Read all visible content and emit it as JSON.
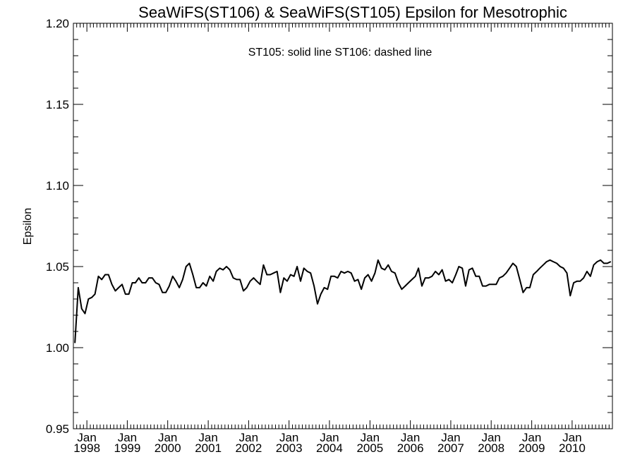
{
  "chart_data": {
    "type": "line",
    "title": "SeaWiFS(ST106) & SeaWiFS(ST105)  Epsilon for Mesotrophic",
    "annotation": "ST105: solid line   ST106: dashed line",
    "xlabel": "",
    "ylabel": "Epsilon",
    "ylim": [
      0.95,
      1.2
    ],
    "xlim": [
      "1997-09-01",
      "2010-12-31"
    ],
    "grid": false,
    "y_ticks": [
      "0.95",
      "1.00",
      "1.05",
      "1.10",
      "1.15",
      "1.20"
    ],
    "x_tick_labels": [
      {
        "month": "Jan",
        "year": "1998",
        "date": "1998-01-01"
      },
      {
        "month": "Jan",
        "year": "1999",
        "date": "1999-01-01"
      },
      {
        "month": "Jan",
        "year": "2000",
        "date": "2000-01-01"
      },
      {
        "month": "Jan",
        "year": "2001",
        "date": "2001-01-01"
      },
      {
        "month": "Jan",
        "year": "2002",
        "date": "2002-01-01"
      },
      {
        "month": "Jan",
        "year": "2003",
        "date": "2003-01-01"
      },
      {
        "month": "Jan",
        "year": "2004",
        "date": "2004-01-01"
      },
      {
        "month": "Jan",
        "year": "2005",
        "date": "2005-01-01"
      },
      {
        "month": "Jan",
        "year": "2006",
        "date": "2006-01-01"
      },
      {
        "month": "Jan",
        "year": "2007",
        "date": "2007-01-01"
      },
      {
        "month": "Jan",
        "year": "2008",
        "date": "2008-01-01"
      },
      {
        "month": "Jan",
        "year": "2009",
        "date": "2009-01-01"
      },
      {
        "month": "Jan",
        "year": "2010",
        "date": "2010-01-01"
      }
    ],
    "series": [
      {
        "name": "ST105",
        "style": "solid",
        "color": "#000000",
        "x": [
          "1997-09",
          "1997-10",
          "1997-11",
          "1997-12",
          "1998-01",
          "1998-02",
          "1998-03",
          "1998-04",
          "1998-05",
          "1998-06",
          "1998-07",
          "1998-08",
          "1998-09",
          "1998-10",
          "1998-11",
          "1998-12",
          "1999-01",
          "1999-02",
          "1999-03",
          "1999-04",
          "1999-05",
          "1999-06",
          "1999-07",
          "1999-08",
          "1999-09",
          "1999-10",
          "1999-11",
          "1999-12",
          "2000-01",
          "2000-02",
          "2000-03",
          "2000-04",
          "2000-05",
          "2000-06",
          "2000-07",
          "2000-08",
          "2000-09",
          "2000-10",
          "2000-11",
          "2000-12",
          "2001-01",
          "2001-02",
          "2001-03",
          "2001-04",
          "2001-05",
          "2001-06",
          "2001-07",
          "2001-08",
          "2001-09",
          "2001-10",
          "2001-11",
          "2001-12",
          "2002-01",
          "2002-02",
          "2002-03",
          "2002-04",
          "2002-05",
          "2002-06",
          "2002-07",
          "2002-08",
          "2002-09",
          "2002-10",
          "2002-11",
          "2002-12",
          "2003-01",
          "2003-02",
          "2003-03",
          "2003-04",
          "2003-05",
          "2003-06",
          "2003-07",
          "2003-08",
          "2003-09",
          "2003-10",
          "2003-11",
          "2003-12",
          "2004-01",
          "2004-02",
          "2004-03",
          "2004-04",
          "2004-05",
          "2004-06",
          "2004-07",
          "2004-08",
          "2004-09",
          "2004-10",
          "2004-11",
          "2004-12",
          "2005-01",
          "2005-02",
          "2005-03",
          "2005-04",
          "2005-05",
          "2005-06",
          "2005-07",
          "2005-08",
          "2005-09",
          "2005-10",
          "2005-11",
          "2005-12",
          "2006-01",
          "2006-02",
          "2006-03",
          "2006-04",
          "2006-05",
          "2006-06",
          "2006-07",
          "2006-08",
          "2006-09",
          "2006-10",
          "2006-11",
          "2006-12",
          "2007-01",
          "2007-02",
          "2007-03",
          "2007-04",
          "2007-05",
          "2007-06",
          "2007-07",
          "2007-08",
          "2007-09",
          "2007-10",
          "2007-11",
          "2007-12",
          "2008-01",
          "2008-02",
          "2008-03",
          "2008-04",
          "2008-05",
          "2008-06",
          "2008-07",
          "2008-08",
          "2008-09",
          "2008-10",
          "2008-11",
          "2008-12",
          "2009-01",
          "2009-02",
          "2009-03",
          "2009-04",
          "2009-05",
          "2009-06",
          "2009-07",
          "2009-08",
          "2009-09",
          "2009-10",
          "2009-11",
          "2009-12",
          "2010-01",
          "2010-02",
          "2010-03",
          "2010-04",
          "2010-05",
          "2010-06",
          "2010-07",
          "2010-08",
          "2010-09",
          "2010-10",
          "2010-11",
          "2010-12"
        ],
        "values": [
          1.003,
          1.037,
          1.024,
          1.021,
          1.03,
          1.031,
          1.033,
          1.044,
          1.042,
          1.045,
          1.045,
          1.039,
          1.035,
          1.037,
          1.039,
          1.033,
          1.033,
          1.04,
          1.04,
          1.043,
          1.04,
          1.04,
          1.043,
          1.043,
          1.04,
          1.039,
          1.034,
          1.034,
          1.038,
          1.044,
          1.041,
          1.037,
          1.042,
          1.05,
          1.052,
          1.045,
          1.037,
          1.037,
          1.04,
          1.038,
          1.044,
          1.041,
          1.047,
          1.049,
          1.048,
          1.05,
          1.048,
          1.043,
          1.042,
          1.042,
          1.035,
          1.037,
          1.041,
          1.043,
          1.041,
          1.039,
          1.051,
          1.045,
          1.045,
          1.046,
          1.047,
          1.034,
          1.043,
          1.041,
          1.045,
          1.044,
          1.05,
          1.041,
          1.049,
          1.047,
          1.046,
          1.038,
          1.027,
          1.033,
          1.037,
          1.036,
          1.044,
          1.044,
          1.043,
          1.047,
          1.046,
          1.047,
          1.046,
          1.041,
          1.042,
          1.036,
          1.043,
          1.045,
          1.041,
          1.046,
          1.054,
          1.049,
          1.048,
          1.051,
          1.047,
          1.046,
          1.04,
          1.036,
          1.038,
          1.04,
          1.042,
          1.044,
          1.049,
          1.038,
          1.043,
          1.043,
          1.044,
          1.047,
          1.045,
          1.048,
          1.041,
          1.042,
          1.04,
          1.045,
          1.05,
          1.049,
          1.038,
          1.048,
          1.049,
          1.044,
          1.044,
          1.038,
          1.038,
          1.039,
          1.039,
          1.039,
          1.043,
          1.044,
          1.046,
          1.049,
          1.052,
          1.05,
          1.042,
          1.034,
          1.037,
          1.037,
          1.045,
          1.047,
          1.049,
          1.051,
          1.053,
          1.054,
          1.053,
          1.052,
          1.05,
          1.049,
          1.046,
          1.032,
          1.04,
          1.041,
          1.041,
          1.043,
          1.047,
          1.044,
          1.051,
          1.053,
          1.054,
          1.052,
          1.052,
          1.053
        ]
      }
    ]
  }
}
